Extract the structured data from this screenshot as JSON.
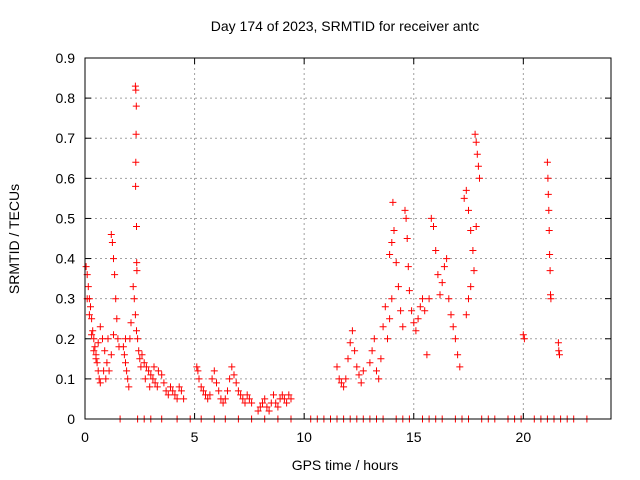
{
  "chart_data": {
    "type": "scatter",
    "title": "Day 174 of 2023, SRMTID for receiver antc",
    "xlabel": "GPS time / hours",
    "ylabel": "SRMTID / TECUs",
    "xlim": [
      0,
      24
    ],
    "ylim": [
      0,
      0.9
    ],
    "xticks": [
      0,
      5,
      10,
      15,
      20
    ],
    "xtick_labels": [
      "0",
      "5",
      "10",
      "15",
      "20"
    ],
    "yticks": [
      0,
      0.1,
      0.2,
      0.3,
      0.4,
      0.5,
      0.6,
      0.7,
      0.8,
      0.9
    ],
    "ytick_labels": [
      "0",
      "0.1",
      "0.2",
      "0.3",
      "0.4",
      "0.5",
      "0.6",
      "0.7",
      "0.8",
      "0.9"
    ],
    "grid": true,
    "marker": "+",
    "color": "#ff0000",
    "series": [
      {
        "name": "SRMTID",
        "points": [
          [
            0.05,
            0.38
          ],
          [
            0.1,
            0.36
          ],
          [
            0.15,
            0.33
          ],
          [
            0.2,
            0.3
          ],
          [
            0.25,
            0.28
          ],
          [
            0.3,
            0.25
          ],
          [
            0.35,
            0.22
          ],
          [
            0.4,
            0.2
          ],
          [
            0.45,
            0.18
          ],
          [
            0.5,
            0.16
          ],
          [
            0.55,
            0.14
          ],
          [
            0.6,
            0.12
          ],
          [
            0.65,
            0.1
          ],
          [
            0.7,
            0.09
          ],
          [
            0.1,
            0.3
          ],
          [
            0.2,
            0.26
          ],
          [
            0.3,
            0.21
          ],
          [
            0.4,
            0.17
          ],
          [
            0.5,
            0.15
          ],
          [
            0.6,
            0.19
          ],
          [
            0.7,
            0.23
          ],
          [
            0.8,
            0.2
          ],
          [
            0.9,
            0.17
          ],
          [
            1.0,
            0.14
          ],
          [
            1.1,
            0.12
          ],
          [
            1.2,
            0.16
          ],
          [
            1.3,
            0.21
          ],
          [
            1.05,
            0.2
          ],
          [
            0.85,
            0.12
          ],
          [
            0.95,
            0.1
          ],
          [
            1.2,
            0.46
          ],
          [
            1.25,
            0.44
          ],
          [
            1.3,
            0.4
          ],
          [
            1.35,
            0.36
          ],
          [
            1.4,
            0.3
          ],
          [
            1.45,
            0.25
          ],
          [
            1.5,
            0.2
          ],
          [
            1.55,
            0.18
          ],
          [
            1.75,
            0.18
          ],
          [
            1.8,
            0.16
          ],
          [
            1.85,
            0.14
          ],
          [
            1.9,
            0.12
          ],
          [
            1.95,
            0.1
          ],
          [
            2.0,
            0.08
          ],
          [
            1.85,
            0.2
          ],
          [
            2.05,
            0.2
          ],
          [
            2.1,
            0.24
          ],
          [
            2.2,
            0.33
          ],
          [
            2.25,
            0.3
          ],
          [
            2.3,
            0.26
          ],
          [
            2.35,
            0.22
          ],
          [
            2.4,
            0.2
          ],
          [
            2.45,
            0.17
          ],
          [
            2.5,
            0.15
          ],
          [
            2.55,
            0.13
          ],
          [
            2.3,
            0.83
          ],
          [
            2.32,
            0.82
          ],
          [
            2.34,
            0.78
          ],
          [
            2.33,
            0.71
          ],
          [
            2.32,
            0.64
          ],
          [
            2.31,
            0.58
          ],
          [
            2.35,
            0.48
          ],
          [
            2.36,
            0.39
          ],
          [
            2.37,
            0.37
          ],
          [
            2.6,
            0.16
          ],
          [
            2.7,
            0.14
          ],
          [
            2.8,
            0.13
          ],
          [
            2.9,
            0.12
          ],
          [
            3.0,
            0.11
          ],
          [
            3.1,
            0.1
          ],
          [
            3.2,
            0.09
          ],
          [
            3.3,
            0.08
          ],
          [
            2.75,
            0.1
          ],
          [
            2.95,
            0.08
          ],
          [
            3.15,
            0.13
          ],
          [
            3.35,
            0.12
          ],
          [
            3.5,
            0.11
          ],
          [
            3.6,
            0.09
          ],
          [
            3.7,
            0.07
          ],
          [
            3.8,
            0.06
          ],
          [
            3.9,
            0.08
          ],
          [
            4.0,
            0.07
          ],
          [
            4.1,
            0.06
          ],
          [
            4.2,
            0.05
          ],
          [
            4.3,
            0.08
          ],
          [
            4.4,
            0.07
          ],
          [
            4.5,
            0.05
          ],
          [
            5.1,
            0.13
          ],
          [
            5.15,
            0.12
          ],
          [
            5.2,
            0.1
          ],
          [
            5.3,
            0.08
          ],
          [
            5.4,
            0.07
          ],
          [
            5.5,
            0.06
          ],
          [
            5.6,
            0.05
          ],
          [
            5.7,
            0.06
          ],
          [
            5.8,
            0.1
          ],
          [
            5.9,
            0.12
          ],
          [
            6.0,
            0.09
          ],
          [
            6.1,
            0.07
          ],
          [
            6.2,
            0.05
          ],
          [
            6.3,
            0.04
          ],
          [
            6.4,
            0.05
          ],
          [
            6.5,
            0.07
          ],
          [
            6.6,
            0.1
          ],
          [
            6.7,
            0.13
          ],
          [
            6.8,
            0.11
          ],
          [
            6.9,
            0.09
          ],
          [
            7.0,
            0.07
          ],
          [
            7.1,
            0.06
          ],
          [
            7.2,
            0.05
          ],
          [
            7.3,
            0.04
          ],
          [
            7.4,
            0.06
          ],
          [
            7.5,
            0.05
          ],
          [
            7.6,
            0.04
          ],
          [
            7.9,
            0.02
          ],
          [
            8.0,
            0.03
          ],
          [
            8.1,
            0.04
          ],
          [
            8.2,
            0.05
          ],
          [
            8.3,
            0.03
          ],
          [
            8.4,
            0.02
          ],
          [
            8.5,
            0.04
          ],
          [
            8.6,
            0.06
          ],
          [
            8.7,
            0.04
          ],
          [
            8.8,
            0.03
          ],
          [
            8.9,
            0.05
          ],
          [
            9.0,
            0.06
          ],
          [
            9.1,
            0.05
          ],
          [
            9.2,
            0.04
          ],
          [
            9.3,
            0.06
          ],
          [
            9.4,
            0.05
          ],
          [
            11.5,
            0.13
          ],
          [
            11.6,
            0.1
          ],
          [
            11.7,
            0.09
          ],
          [
            11.8,
            0.08
          ],
          [
            11.9,
            0.1
          ],
          [
            12.0,
            0.15
          ],
          [
            12.1,
            0.19
          ],
          [
            12.2,
            0.22
          ],
          [
            12.3,
            0.17
          ],
          [
            12.4,
            0.13
          ],
          [
            12.5,
            0.11
          ],
          [
            12.6,
            0.09
          ],
          [
            12.7,
            0.12
          ],
          [
            13.0,
            0.14
          ],
          [
            13.1,
            0.17
          ],
          [
            13.2,
            0.2
          ],
          [
            13.3,
            0.12
          ],
          [
            13.4,
            0.1
          ],
          [
            13.5,
            0.15
          ],
          [
            13.6,
            0.23
          ],
          [
            13.7,
            0.28
          ],
          [
            13.8,
            0.2
          ],
          [
            13.9,
            0.25
          ],
          [
            14.0,
            0.3
          ],
          [
            13.9,
            0.41
          ],
          [
            14.0,
            0.44
          ],
          [
            14.05,
            0.54
          ],
          [
            14.1,
            0.47
          ],
          [
            14.2,
            0.39
          ],
          [
            14.3,
            0.33
          ],
          [
            14.4,
            0.27
          ],
          [
            14.5,
            0.23
          ],
          [
            14.6,
            0.52
          ],
          [
            14.65,
            0.5
          ],
          [
            14.7,
            0.45
          ],
          [
            14.75,
            0.38
          ],
          [
            14.8,
            0.32
          ],
          [
            14.9,
            0.27
          ],
          [
            15.0,
            0.24
          ],
          [
            15.1,
            0.22
          ],
          [
            15.2,
            0.25
          ],
          [
            15.3,
            0.28
          ],
          [
            15.4,
            0.3
          ],
          [
            15.5,
            0.27
          ],
          [
            15.6,
            0.16
          ],
          [
            15.7,
            0.3
          ],
          [
            15.8,
            0.5
          ],
          [
            15.9,
            0.48
          ],
          [
            16.0,
            0.42
          ],
          [
            16.1,
            0.36
          ],
          [
            16.2,
            0.31
          ],
          [
            16.3,
            0.34
          ],
          [
            16.4,
            0.38
          ],
          [
            16.5,
            0.4
          ],
          [
            16.6,
            0.3
          ],
          [
            16.7,
            0.26
          ],
          [
            16.8,
            0.23
          ],
          [
            16.9,
            0.2
          ],
          [
            17.0,
            0.16
          ],
          [
            17.1,
            0.13
          ],
          [
            17.3,
            0.55
          ],
          [
            17.4,
            0.57
          ],
          [
            17.5,
            0.52
          ],
          [
            17.6,
            0.47
          ],
          [
            17.7,
            0.42
          ],
          [
            17.8,
            0.71
          ],
          [
            17.85,
            0.69
          ],
          [
            17.9,
            0.66
          ],
          [
            17.95,
            0.63
          ],
          [
            18.0,
            0.6
          ],
          [
            17.85,
            0.48
          ],
          [
            17.75,
            0.37
          ],
          [
            17.6,
            0.33
          ],
          [
            17.5,
            0.3
          ],
          [
            17.4,
            0.26
          ],
          [
            20.0,
            0.21
          ],
          [
            20.05,
            0.2
          ],
          [
            21.1,
            0.64
          ],
          [
            21.12,
            0.6
          ],
          [
            21.14,
            0.56
          ],
          [
            21.16,
            0.52
          ],
          [
            21.18,
            0.47
          ],
          [
            21.2,
            0.41
          ],
          [
            21.22,
            0.37
          ],
          [
            21.24,
            0.31
          ],
          [
            21.26,
            0.3
          ],
          [
            21.6,
            0.19
          ],
          [
            21.62,
            0.17
          ],
          [
            21.65,
            0.16
          ],
          [
            1.6,
            0
          ],
          [
            2.4,
            0
          ],
          [
            2.7,
            0
          ],
          [
            3.0,
            0
          ],
          [
            3.5,
            0
          ],
          [
            4.2,
            0
          ],
          [
            4.8,
            0
          ],
          [
            5.3,
            0
          ],
          [
            5.9,
            0
          ],
          [
            6.4,
            0
          ],
          [
            7.0,
            0
          ],
          [
            7.6,
            0
          ],
          [
            8.2,
            0
          ],
          [
            8.8,
            0
          ],
          [
            9.4,
            0
          ],
          [
            10.3,
            0
          ],
          [
            10.6,
            0
          ],
          [
            10.9,
            0
          ],
          [
            11.2,
            0
          ],
          [
            11.5,
            0
          ],
          [
            11.8,
            0
          ],
          [
            12.1,
            0
          ],
          [
            12.4,
            0
          ],
          [
            12.7,
            0
          ],
          [
            13.0,
            0
          ],
          [
            13.3,
            0
          ],
          [
            13.6,
            0
          ],
          [
            14.2,
            0
          ],
          [
            14.5,
            0
          ],
          [
            14.8,
            0
          ],
          [
            15.4,
            0
          ],
          [
            15.7,
            0
          ],
          [
            16.0,
            0
          ],
          [
            16.3,
            0
          ],
          [
            16.9,
            0
          ],
          [
            17.2,
            0
          ],
          [
            17.5,
            0
          ],
          [
            18.1,
            0
          ],
          [
            18.4,
            0
          ],
          [
            18.7,
            0
          ],
          [
            19.3,
            0
          ],
          [
            19.6,
            0
          ],
          [
            19.9,
            0
          ],
          [
            20.5,
            0
          ],
          [
            20.8,
            0
          ],
          [
            21.1,
            0
          ],
          [
            21.4,
            0
          ],
          [
            21.7,
            0
          ],
          [
            22.0,
            0
          ],
          [
            22.3,
            0
          ],
          [
            22.9,
            0
          ]
        ]
      }
    ]
  }
}
